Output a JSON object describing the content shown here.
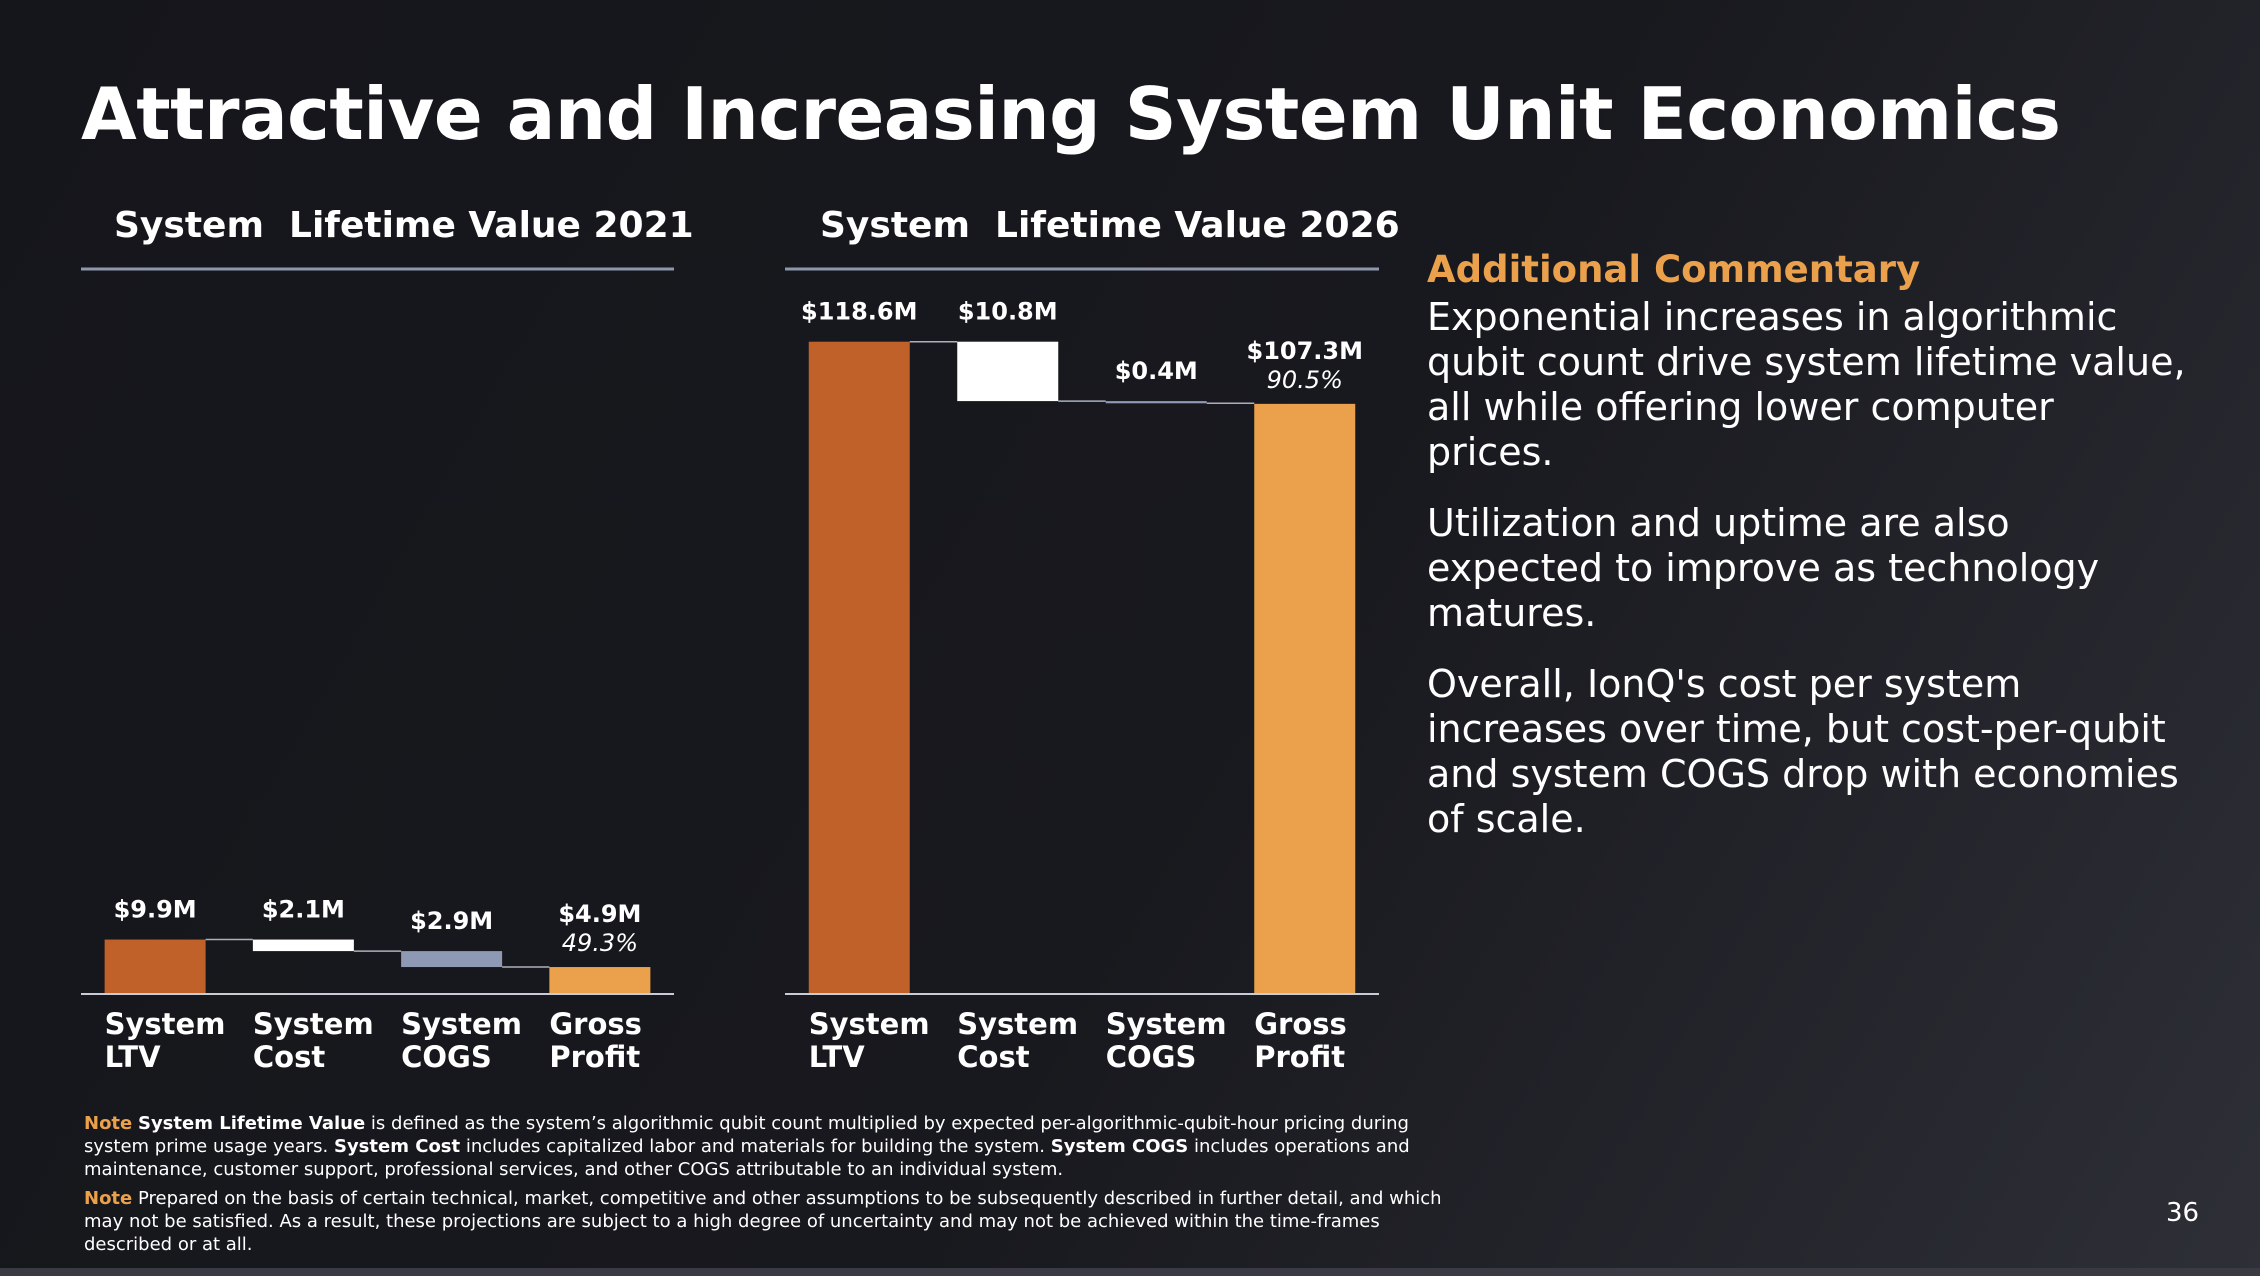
{
  "title": "Attractive and Increasing System Unit Economics",
  "chart_data": [
    {
      "type": "waterfall",
      "title": "System  Lifetime Value 2021",
      "categories": [
        "System LTV",
        "System Cost",
        "System COGS",
        "Gross Profit"
      ],
      "measures": [
        "total",
        "decrease",
        "decrease",
        "total"
      ],
      "values": [
        9.9,
        2.1,
        2.9,
        4.9
      ],
      "value_labels": [
        "$9.9M",
        "$2.1M",
        "$2.9M",
        "$4.9M"
      ],
      "colors": [
        "#c0612a",
        "#ffffff",
        "#8e9ab5",
        "#eba14c"
      ],
      "gross_margin": 49.3,
      "gross_margin_label": "49.3%",
      "ylim": [
        0,
        130
      ]
    },
    {
      "type": "waterfall",
      "title": "System  Lifetime Value 2026",
      "categories": [
        "System LTV",
        "System Cost",
        "System COGS",
        "Gross Profit"
      ],
      "measures": [
        "total",
        "decrease",
        "decrease",
        "total"
      ],
      "values": [
        118.6,
        10.8,
        0.4,
        107.3
      ],
      "value_labels": [
        "$118.6M",
        "$10.8M",
        "$0.4M",
        "$107.3M"
      ],
      "colors": [
        "#c0612a",
        "#ffffff",
        "#8e9ab5",
        "#eba14c"
      ],
      "gross_margin": 90.5,
      "gross_margin_label": "90.5%",
      "ylim": [
        0,
        130
      ]
    }
  ],
  "commentary": {
    "heading": "Additional Commentary",
    "paragraphs": [
      "Exponential increases in algorithmic qubit count drive system lifetime value, all while offering lower computer prices.",
      "Utilization and uptime are also expected to improve as technology matures.",
      "Overall, IonQ's cost per system increases over time, but cost-per-qubit and system COGS drop with economies of scale."
    ]
  },
  "notes": [
    {
      "label": "Note",
      "segments": [
        {
          "text": "System Lifetime Value",
          "bold": true
        },
        {
          "text": " is defined as the system’s algorithmic qubit count multiplied by expected per-algorithmic-qubit-hour pricing during system prime usage years. ",
          "bold": false
        },
        {
          "text": "System Cost",
          "bold": true
        },
        {
          "text": " includes capitalized labor and materials for building the system. ",
          "bold": false
        },
        {
          "text": "System COGS",
          "bold": true
        },
        {
          "text": " includes operations and maintenance, customer support, professional services, and other COGS attributable to an individual system.",
          "bold": false
        }
      ]
    },
    {
      "label": "Note",
      "segments": [
        {
          "text": " Prepared on the basis of certain technical, market, competitive and other assumptions to be subsequently described in further detail, and which may not be satisfied. As a result, these projections are subject to a high degree of uncertainty and may not be achieved within the time-frames described or at all.",
          "bold": false
        }
      ]
    }
  ],
  "page_number": "36"
}
